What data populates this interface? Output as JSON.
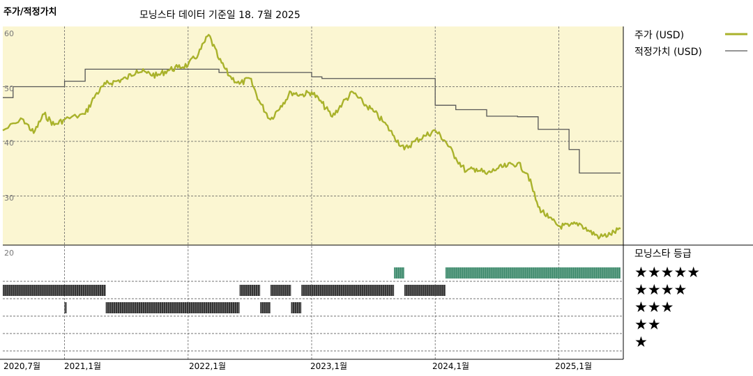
{
  "chart_data": {
    "type": "line",
    "title": "주가/적정가치",
    "subtitle": "모닝스타 데이터 기준일 18. 7월 2025",
    "y_axis": {
      "ticks": [
        "60",
        "50",
        "40",
        "30",
        "20"
      ],
      "ylim": [
        20,
        60
      ],
      "grid": true
    },
    "x_axis": {
      "ticks": [
        "2020,7월",
        "2021,1월",
        "2022,1월",
        "2023,1월",
        "2024,1월",
        "2025,1월"
      ],
      "range": [
        "2020-07",
        "2025-07"
      ]
    },
    "series": [
      {
        "name": "주가 (USD)",
        "color": "#a9b22b",
        "points": [
          [
            "2020-07",
            42
          ],
          [
            "2020-09",
            44
          ],
          [
            "2020-10",
            41.5
          ],
          [
            "2020-11",
            45
          ],
          [
            "2020-12",
            43
          ],
          [
            "2021-01",
            44
          ],
          [
            "2021-03",
            45
          ],
          [
            "2021-04",
            48.5
          ],
          [
            "2021-05",
            50.5
          ],
          [
            "2021-06",
            51
          ],
          [
            "2021-07",
            51.5
          ],
          [
            "2021-08",
            53
          ],
          [
            "2021-09",
            52.5
          ],
          [
            "2021-10",
            52
          ],
          [
            "2021-11",
            53
          ],
          [
            "2021-12",
            53.5
          ],
          [
            "2022-01",
            54
          ],
          [
            "2022-02",
            56
          ],
          [
            "2022-03",
            59.5
          ],
          [
            "2022-04",
            55
          ],
          [
            "2022-05",
            52
          ],
          [
            "2022-06",
            50.5
          ],
          [
            "2022-07",
            51.5
          ],
          [
            "2022-08",
            47
          ],
          [
            "2022-09",
            44
          ],
          [
            "2022-10",
            46.5
          ],
          [
            "2022-11",
            49
          ],
          [
            "2022-12",
            48.5
          ],
          [
            "2023-01",
            49
          ],
          [
            "2023-02",
            47
          ],
          [
            "2023-03",
            44.5
          ],
          [
            "2023-04",
            47
          ],
          [
            "2023-05",
            49
          ],
          [
            "2023-06",
            47
          ],
          [
            "2023-07",
            45.5
          ],
          [
            "2023-08",
            43.5
          ],
          [
            "2023-09",
            41
          ],
          [
            "2023-10",
            38.5
          ],
          [
            "2023-11",
            40
          ],
          [
            "2023-12",
            41
          ],
          [
            "2024-01",
            42
          ],
          [
            "2024-02",
            40
          ],
          [
            "2024-03",
            37
          ],
          [
            "2024-04",
            34.5
          ],
          [
            "2024-05",
            35
          ],
          [
            "2024-06",
            34
          ],
          [
            "2024-07",
            35
          ],
          [
            "2024-08",
            35.5
          ],
          [
            "2024-09",
            36
          ],
          [
            "2024-10",
            34
          ],
          [
            "2024-11",
            28
          ],
          [
            "2024-12",
            26
          ],
          [
            "2025-01",
            24.5
          ],
          [
            "2025-02",
            24.5
          ],
          [
            "2025-03",
            25
          ],
          [
            "2025-04",
            23.5
          ],
          [
            "2025-05",
            22.5
          ],
          [
            "2025-06",
            23
          ],
          [
            "2025-07",
            24
          ]
        ]
      },
      {
        "name": "적정가치 (USD)",
        "color": "#555555",
        "steps": [
          [
            "2020-07",
            48
          ],
          [
            "2020-08",
            50
          ],
          [
            "2021-01",
            51
          ],
          [
            "2021-03",
            53.2
          ],
          [
            "2022-04",
            52.6
          ],
          [
            "2023-01",
            51.8
          ],
          [
            "2023-02",
            51.5
          ],
          [
            "2024-01",
            46.6
          ],
          [
            "2024-03",
            45.8
          ],
          [
            "2024-06",
            44.6
          ],
          [
            "2024-09",
            44.5
          ],
          [
            "2024-11",
            42.2
          ],
          [
            "2025-02",
            38.5
          ],
          [
            "2025-03",
            34.2
          ],
          [
            "2025-07",
            34.2
          ]
        ]
      }
    ],
    "rating": {
      "label": "모닝스타 등급",
      "levels": [
        "★★★★★",
        "★★★★",
        "★★★",
        "★★",
        "★"
      ],
      "colors": {
        "5": "#3d8a6c",
        "4": "#333333",
        "3": "#333333"
      },
      "periods": [
        {
          "stars": 4,
          "from": "2020-07",
          "to": "2021-01"
        },
        {
          "stars": 3,
          "from": "2021-01",
          "to": "2021-01"
        },
        {
          "stars": 4,
          "from": "2021-01",
          "to": "2021-05"
        },
        {
          "stars": 3,
          "from": "2021-05",
          "to": "2022-06"
        },
        {
          "stars": 4,
          "from": "2022-06",
          "to": "2022-08"
        },
        {
          "stars": 3,
          "from": "2022-08",
          "to": "2022-09"
        },
        {
          "stars": 4,
          "from": "2022-09",
          "to": "2022-11"
        },
        {
          "stars": 3,
          "from": "2022-11",
          "to": "2022-12"
        },
        {
          "stars": 4,
          "from": "2022-12",
          "to": "2023-09"
        },
        {
          "stars": 5,
          "from": "2023-09",
          "to": "2023-10"
        },
        {
          "stars": 4,
          "from": "2023-10",
          "to": "2024-02"
        },
        {
          "stars": 5,
          "from": "2024-02",
          "to": "2025-07"
        }
      ]
    }
  }
}
